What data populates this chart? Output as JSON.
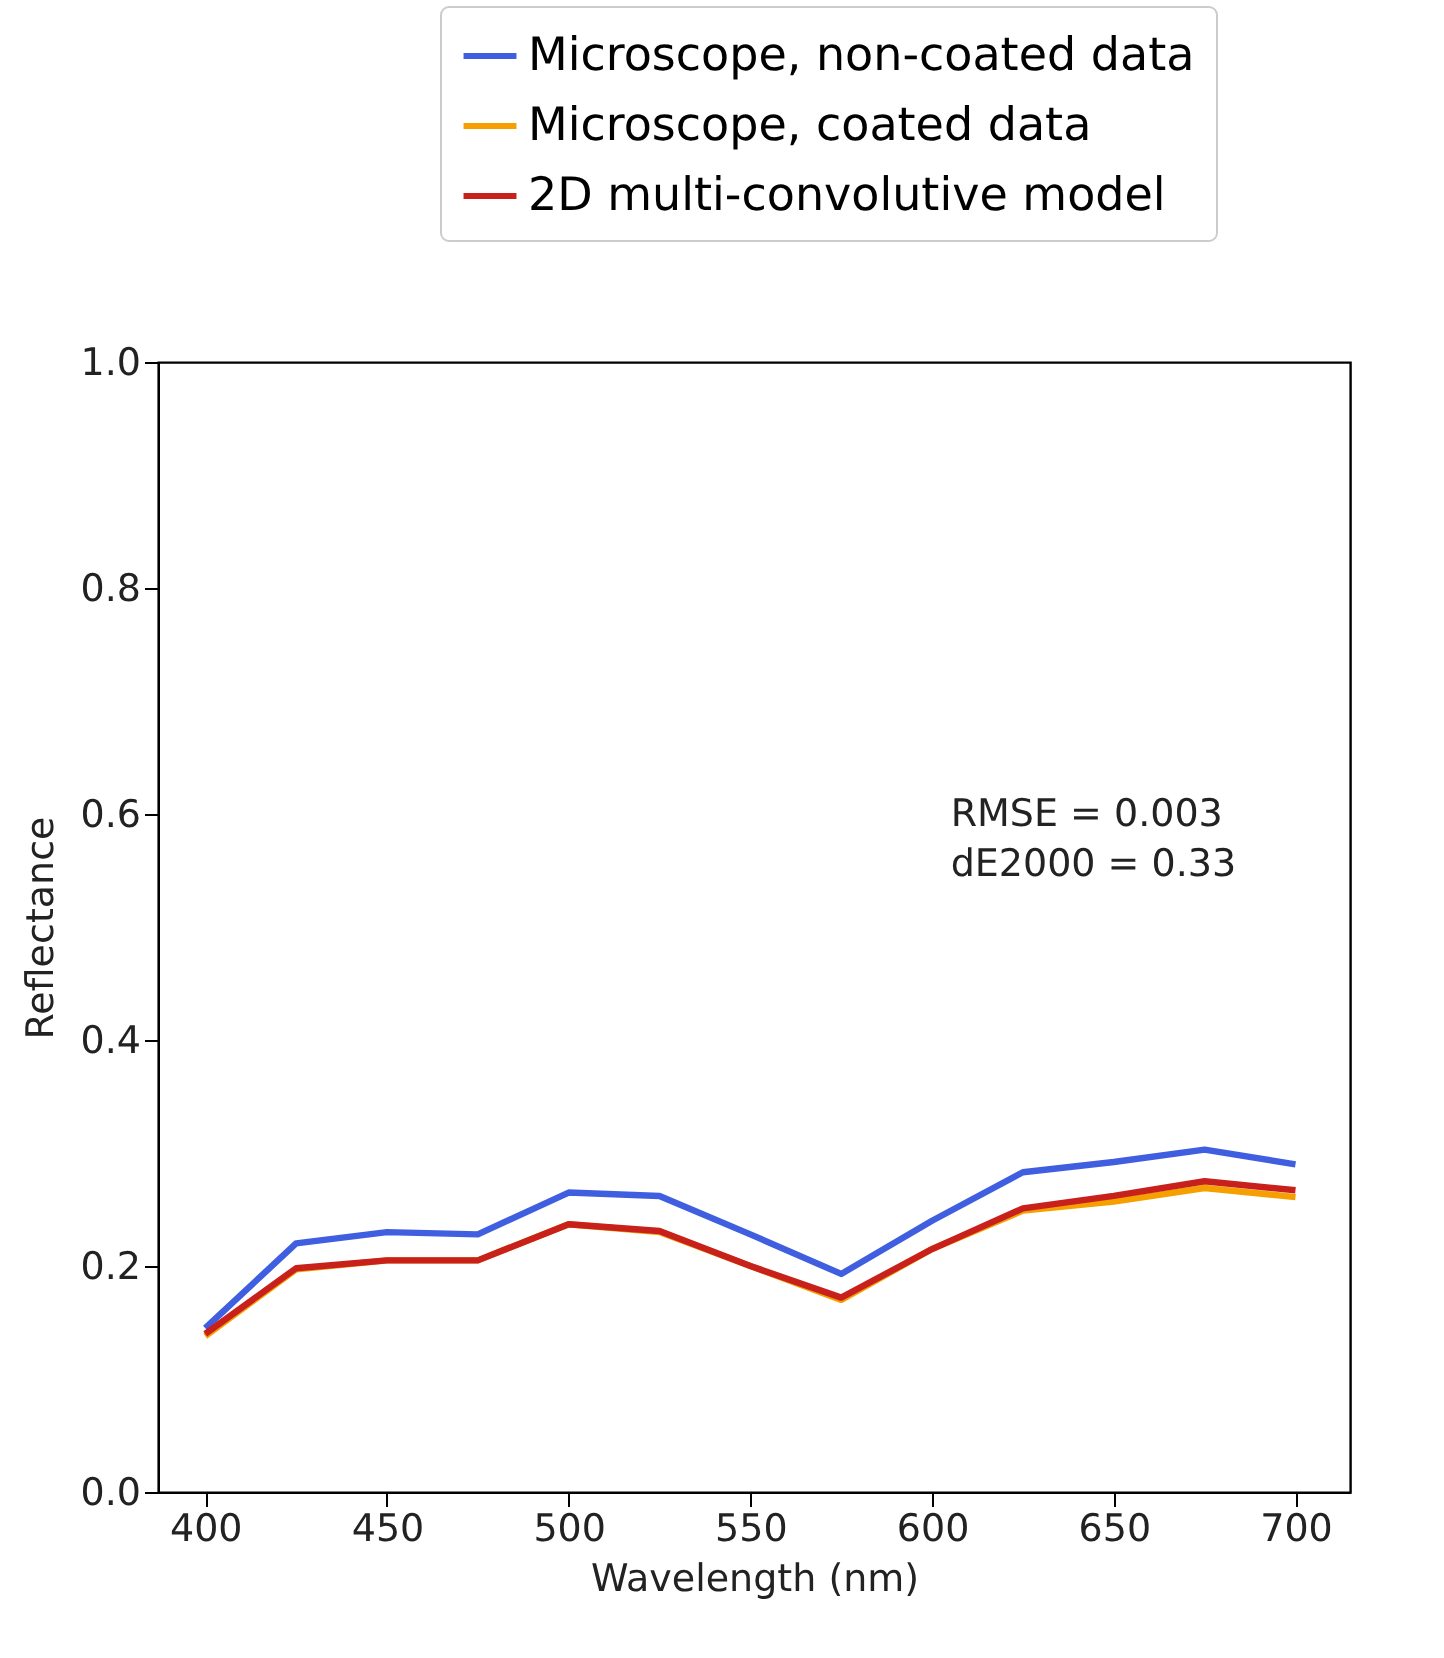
{
  "chart_data": {
    "type": "line",
    "x": [
      400,
      425,
      450,
      475,
      500,
      525,
      550,
      575,
      600,
      625,
      650,
      675,
      700
    ],
    "series": [
      {
        "name": "Microscope, non-coated data",
        "color": "#3f5fe0",
        "values": [
          0.145,
          0.22,
          0.23,
          0.228,
          0.265,
          0.262,
          0.228,
          0.193,
          0.24,
          0.283,
          0.292,
          0.303,
          0.29
        ]
      },
      {
        "name": "Microscope, coated data",
        "color": "#f5a000",
        "values": [
          0.138,
          0.197,
          0.205,
          0.205,
          0.237,
          0.23,
          0.2,
          0.17,
          0.215,
          0.249,
          0.257,
          0.269,
          0.261
        ]
      },
      {
        "name": "2D multi-convolutive model",
        "color": "#c8201a",
        "values": [
          0.14,
          0.198,
          0.205,
          0.205,
          0.237,
          0.231,
          0.2,
          0.172,
          0.215,
          0.251,
          0.262,
          0.275,
          0.267
        ]
      }
    ],
    "xlabel": "Wavelength (nm)",
    "ylabel": "Reflectance",
    "xlim": [
      387,
      715
    ],
    "ylim": [
      0,
      1.0
    ],
    "xticks": [
      400,
      450,
      500,
      550,
      600,
      650,
      700
    ],
    "yticks": [
      {
        "value": 0,
        "label": "0.0"
      },
      0.2,
      0.4,
      0.6,
      0.8,
      {
        "value": 1.0,
        "label": "1.0"
      }
    ],
    "annotations": [
      "RMSE = 0.003",
      "dE2000 = 0.33"
    ],
    "legend": "top right",
    "grid": false,
    "marker": "none",
    "line_style": "solid"
  }
}
